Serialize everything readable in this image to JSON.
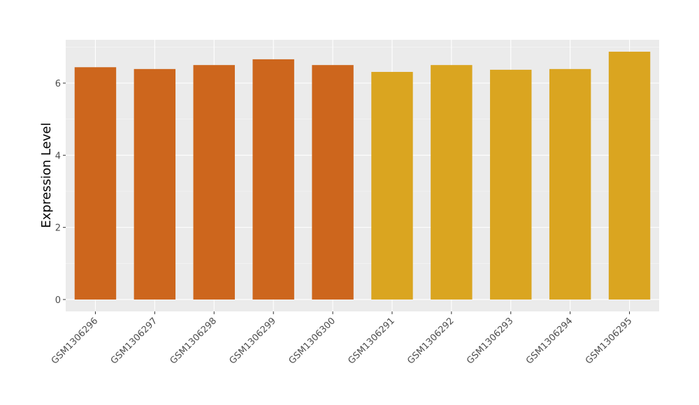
{
  "chart_data": {
    "type": "bar",
    "y_label": "Expression Level",
    "categories": [
      "GSM1306296",
      "GSM1306297",
      "GSM1306298",
      "GSM1306299",
      "GSM1306300",
      "GSM1306291",
      "GSM1306292",
      "GSM1306293",
      "GSM1306294",
      "GSM1306295"
    ],
    "values": [
      6.44,
      6.39,
      6.5,
      6.66,
      6.5,
      6.31,
      6.5,
      6.37,
      6.39,
      6.87
    ],
    "colors": [
      "#CD661D",
      "#CD661D",
      "#CD661D",
      "#CD661D",
      "#CD661D",
      "#DAA520",
      "#DAA520",
      "#DAA520",
      "#DAA520",
      "#DAA520"
    ],
    "ylim": [
      -0.33,
      7.2
    ],
    "yticks": [
      0,
      2,
      4,
      6
    ],
    "minor_yticks": [
      1,
      3,
      5,
      7
    ],
    "grid": true
  }
}
